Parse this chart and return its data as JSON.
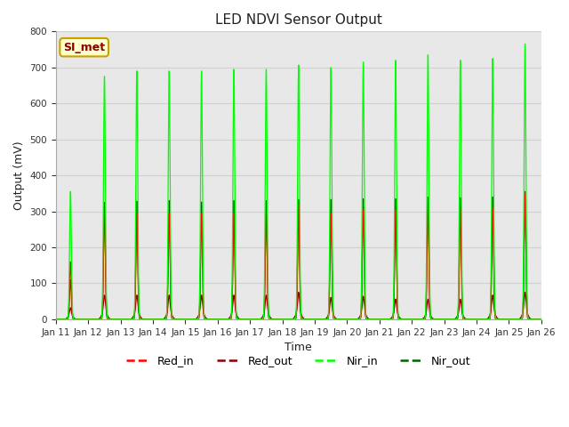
{
  "title": "LED NDVI Sensor Output",
  "xlabel": "Time",
  "ylabel": "Output (mV)",
  "ylim": [
    0,
    800
  ],
  "yticks": [
    0,
    100,
    200,
    300,
    400,
    500,
    600,
    700,
    800
  ],
  "xtick_labels": [
    "Jan 11",
    "Jan 12",
    "Jan 13",
    "Jan 14",
    "Jan 15",
    "Jan 16",
    "Jan 17",
    "Jan 18",
    "Jan 19",
    "Jan 20",
    "Jan 21",
    "Jan 22",
    "Jan 23",
    "Jan 24",
    "Jan 25",
    "Jan 26"
  ],
  "figure_bg": "#ffffff",
  "plot_bg": "#e8e8e8",
  "colors": {
    "Red_in": "#ff0000",
    "Red_out": "#8b0000",
    "Nir_in": "#00ff00",
    "Nir_out": "#006400"
  },
  "annotation_text": "SI_met",
  "annotation_bg": "#ffffcc",
  "annotation_fg": "#8b0000",
  "annotation_border": "#c8a000",
  "pulse_centers": [
    0.45,
    1.5,
    2.5,
    3.5,
    4.5,
    5.5,
    6.5,
    7.5,
    8.5,
    9.5,
    10.5,
    11.5,
    12.5,
    13.5,
    14.5
  ],
  "nir_in_heights": [
    355,
    675,
    690,
    690,
    690,
    695,
    695,
    707,
    700,
    715,
    720,
    735,
    720,
    725,
    765
  ],
  "red_in_heights": [
    160,
    295,
    295,
    295,
    295,
    295,
    295,
    318,
    295,
    305,
    305,
    310,
    305,
    310,
    350
  ],
  "red_out_heights": [
    20,
    42,
    42,
    42,
    42,
    42,
    42,
    47,
    38,
    40,
    35,
    35,
    35,
    42,
    47
  ],
  "nir_out_heights": [
    110,
    325,
    328,
    330,
    326,
    330,
    330,
    333,
    333,
    335,
    335,
    340,
    338,
    340,
    355
  ],
  "pulse_sigma": 0.028,
  "grid_color": "#d0d0d0",
  "linewidth": 0.9
}
